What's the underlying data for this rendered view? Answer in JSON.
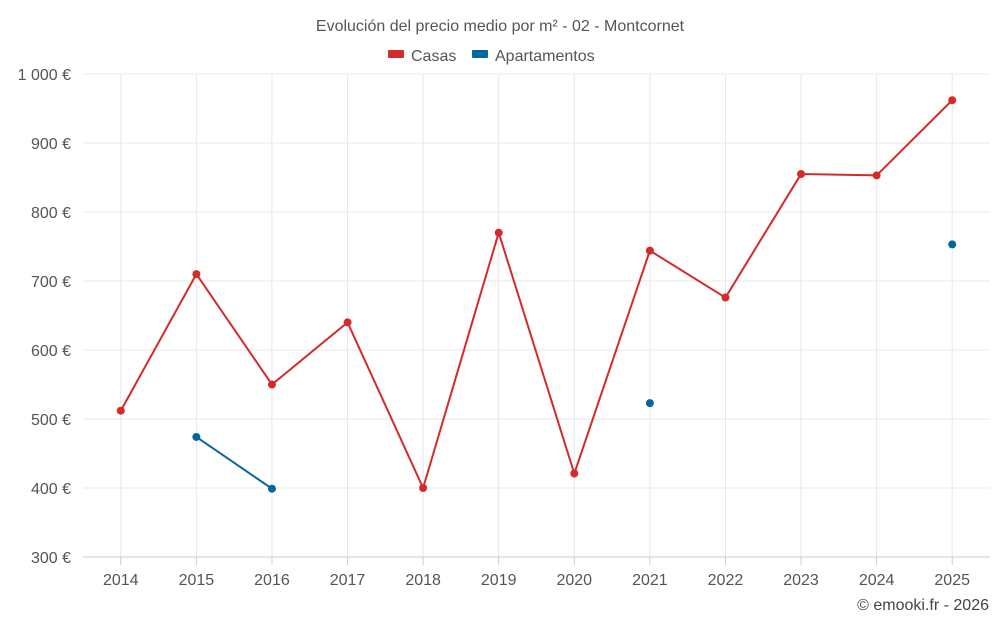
{
  "chart_data": {
    "type": "line",
    "title": "Evolución del precio medio por m² - 02 - Montcornet",
    "categories": [
      "2014",
      "2015",
      "2016",
      "2017",
      "2018",
      "2019",
      "2020",
      "2021",
      "2022",
      "2023",
      "2024",
      "2025"
    ],
    "ylim": [
      300,
      1000
    ],
    "yticks": [
      300,
      400,
      500,
      600,
      700,
      800,
      900,
      1000
    ],
    "ytick_labels": [
      "300 €",
      "400 €",
      "500 €",
      "600 €",
      "700 €",
      "800 €",
      "900 €",
      "1 000 €"
    ],
    "grid": true,
    "legend_position": "top-center",
    "series": [
      {
        "name": "Casas",
        "color": "#d42a2a",
        "values": [
          512,
          710,
          550,
          640,
          400,
          770,
          421,
          744,
          676,
          855,
          853,
          962
        ]
      },
      {
        "name": "Apartamentos",
        "color": "#05679c",
        "values": [
          null,
          474,
          399,
          null,
          null,
          null,
          null,
          523,
          null,
          null,
          null,
          753
        ]
      }
    ]
  },
  "credit": "© emooki.fr - 2026"
}
